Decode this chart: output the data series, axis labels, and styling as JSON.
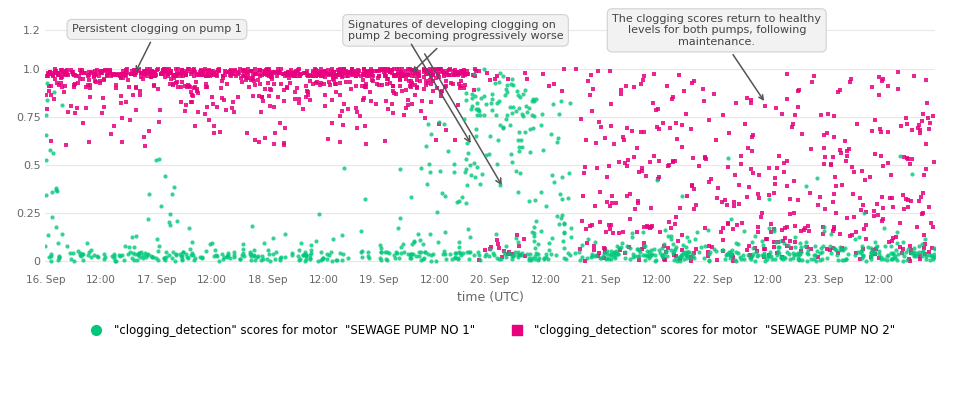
{
  "xlabel": "time (UTC)",
  "ylim": [
    -0.05,
    1.28
  ],
  "xlim": [
    0,
    200
  ],
  "background_color": "#ffffff",
  "pump1_color": "#00c87a",
  "pump2_color": "#e8007f",
  "annotation1_text": "Persistent clogging on pump 1",
  "annotation2_text": "Signatures of developing clogging on\npump 2 becoming progressively worse",
  "annotation3_text": "The clogging scores return to healthy\nlevels for both pumps, following\nmaintenance.",
  "legend1_label": "\"clogging_detection\" scores for motor  \"SEWAGE PUMP NO 1\"",
  "legend2_label": "\"clogging_detection\" scores for motor  \"SEWAGE PUMP NO 2\"",
  "tick_labels": [
    "16. Sep",
    "12:00",
    "17. Sep",
    "12:00",
    "18. Sep",
    "12:00",
    "19. Sep",
    "12:00",
    "20. Sep",
    "12:00",
    "21. Sep",
    "12:00",
    "22. Sep",
    "12:00",
    "23. Sep",
    "12:00"
  ],
  "tick_positions": [
    0,
    12.5,
    25,
    37.5,
    50,
    62.5,
    75,
    87.5,
    100,
    112.5,
    125,
    137.5,
    150,
    162.5,
    175,
    187.5
  ],
  "yticks": [
    0,
    0.25,
    0.5,
    0.75,
    1.0,
    1.2
  ],
  "grid_color": "#e8e8e8"
}
